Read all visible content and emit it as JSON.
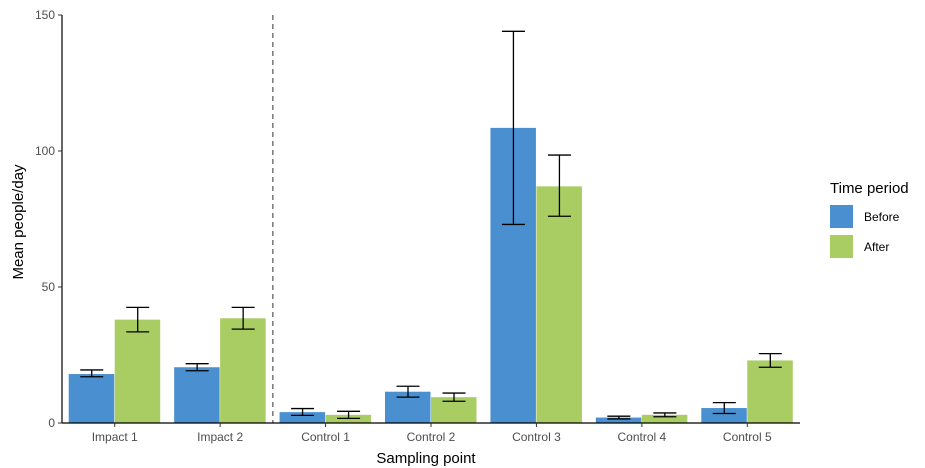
{
  "chart_data": {
    "type": "bar",
    "xlabel": "Sampling point",
    "ylabel": "Mean people/day",
    "ylim": [
      0,
      150
    ],
    "yticks": [
      0,
      50,
      100,
      150
    ],
    "grid": false,
    "legend_placement": "right",
    "legend_title": "Time period",
    "categories": [
      "Impact 1",
      "Impact 2",
      "Control 1",
      "Control 2",
      "Control 3",
      "Control 4",
      "Control 5"
    ],
    "separator_after_category": "Impact 2",
    "series": [
      {
        "name": "Before",
        "color": "#4a90d0",
        "values": [
          18,
          20.5,
          4,
          11.5,
          108.5,
          2,
          5.5
        ],
        "error_low": [
          17,
          19.2,
          2.8,
          9.5,
          73,
          1.5,
          3.5
        ],
        "error_high": [
          19.5,
          21.8,
          5.3,
          13.5,
          144,
          2.5,
          7.5
        ]
      },
      {
        "name": "After",
        "color": "#a9cc63",
        "values": [
          38,
          38.5,
          3,
          9.5,
          87,
          3,
          23
        ],
        "error_low": [
          33.5,
          34.5,
          1.7,
          8,
          76,
          2.3,
          20.5
        ],
        "error_high": [
          42.5,
          42.5,
          4.3,
          11,
          98.5,
          3.7,
          25.5
        ]
      }
    ]
  }
}
